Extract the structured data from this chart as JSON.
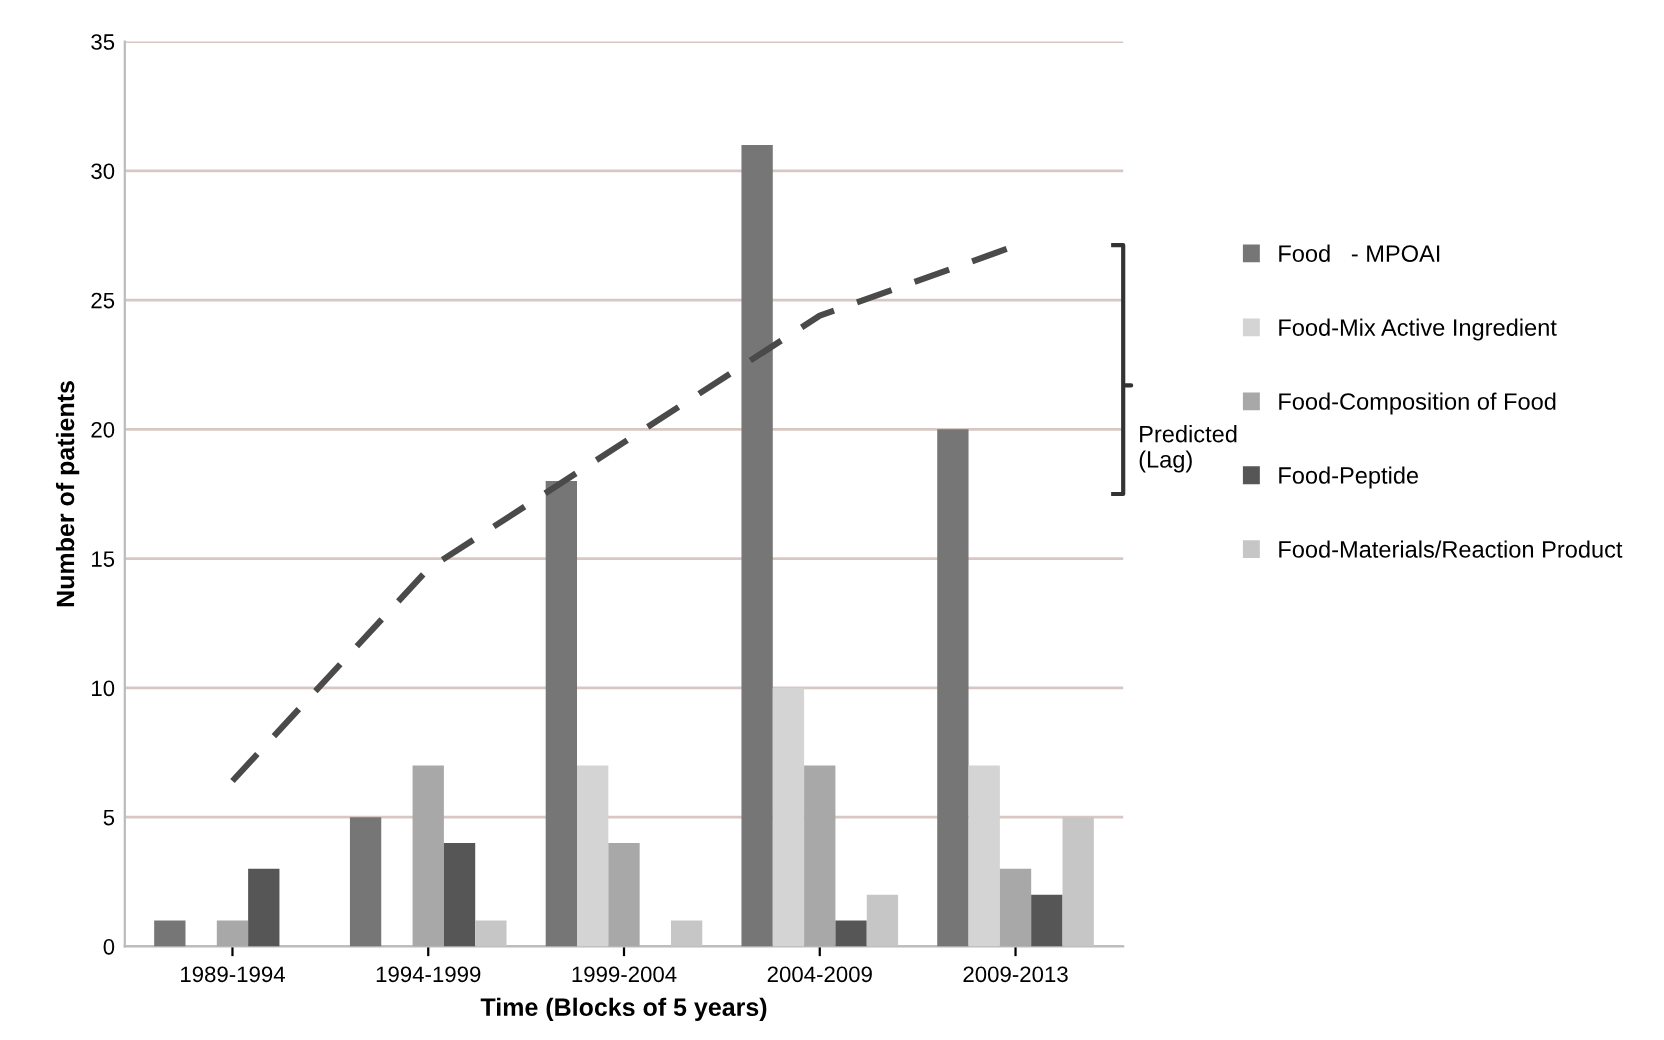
{
  "chart_data": {
    "type": "bar",
    "xlabel": "Time (Blocks of 5 years)",
    "ylabel": "Number of patients",
    "categories": [
      "1989-1994",
      "1994-1999",
      "1999-2004",
      "2004-2009",
      "2009-2013"
    ],
    "series": [
      {
        "name": "Food   - MPOAI",
        "color": "#767676",
        "values": [
          1,
          5,
          18,
          31,
          20
        ]
      },
      {
        "name": "Food-Mix Active Ingredient",
        "color": "#d4d4d4",
        "values": [
          0,
          0,
          7,
          10,
          7
        ]
      },
      {
        "name": "Food-Composition of Food",
        "color": "#a8a8a8",
        "values": [
          1,
          7,
          4,
          7,
          3
        ]
      },
      {
        "name": "Food-Peptide",
        "color": "#565656",
        "values": [
          3,
          4,
          0,
          1,
          2
        ]
      },
      {
        "name": "Food-Materials/Reaction Product",
        "color": "#c6c6c6",
        "values": [
          0,
          1,
          1,
          2,
          5
        ]
      },
      {
        "type": "line",
        "color": "#4a4a4a",
        "line_style": "dashed",
        "values": [
          6.4,
          14.6,
          19.5,
          24.4,
          27.1
        ]
      }
    ],
    "annotations": [
      "Predicted\n(Lag)"
    ],
    "ylim": [
      0,
      35
    ],
    "yticks": [
      0,
      5,
      10,
      15,
      20,
      25,
      30,
      35
    ],
    "grid": "y",
    "legend": "right"
  }
}
